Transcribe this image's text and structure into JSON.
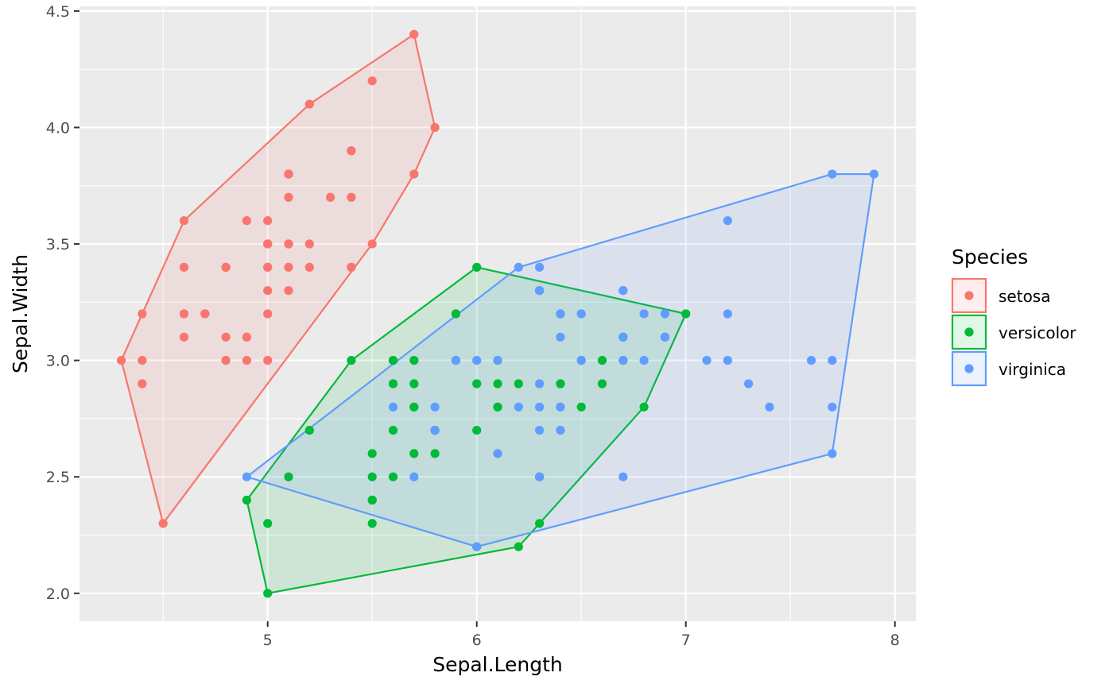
{
  "chart_data": {
    "type": "scatter",
    "title": "",
    "xlabel": "Sepal.Length",
    "ylabel": "Sepal.Width",
    "xlim": [
      4.1,
      8.1
    ],
    "ylim": [
      1.88,
      4.52
    ],
    "x_ticks": [
      5,
      6,
      7,
      8
    ],
    "x_tick_labels": [
      "5",
      "6",
      "7",
      "8"
    ],
    "y_ticks": [
      2.0,
      2.5,
      3.0,
      3.5,
      4.0,
      4.5
    ],
    "y_tick_labels": [
      "2.0",
      "2.5",
      "3.0",
      "3.5",
      "4.0",
      "4.5"
    ],
    "grid": true,
    "panel_background": "#ebebeb",
    "grid_color": "#ffffff",
    "legend": {
      "title": "Species",
      "placement": "right"
    },
    "overlay": "convex-hull",
    "series": [
      {
        "name": "setosa",
        "color": "#f8766d",
        "points": [
          [
            5.1,
            3.5
          ],
          [
            4.9,
            3.0
          ],
          [
            4.7,
            3.2
          ],
          [
            4.6,
            3.1
          ],
          [
            5.0,
            3.6
          ],
          [
            5.4,
            3.9
          ],
          [
            4.6,
            3.4
          ],
          [
            5.0,
            3.4
          ],
          [
            4.4,
            2.9
          ],
          [
            4.9,
            3.1
          ],
          [
            5.4,
            3.7
          ],
          [
            4.8,
            3.4
          ],
          [
            4.8,
            3.0
          ],
          [
            4.3,
            3.0
          ],
          [
            5.8,
            4.0
          ],
          [
            5.7,
            4.4
          ],
          [
            5.4,
            3.9
          ],
          [
            5.1,
            3.5
          ],
          [
            5.7,
            3.8
          ],
          [
            5.1,
            3.8
          ],
          [
            5.4,
            3.4
          ],
          [
            5.1,
            3.7
          ],
          [
            4.6,
            3.6
          ],
          [
            5.1,
            3.3
          ],
          [
            4.8,
            3.4
          ],
          [
            5.0,
            3.0
          ],
          [
            5.0,
            3.4
          ],
          [
            5.2,
            3.5
          ],
          [
            5.2,
            3.4
          ],
          [
            4.7,
            3.2
          ],
          [
            4.8,
            3.1
          ],
          [
            5.4,
            3.4
          ],
          [
            5.2,
            4.1
          ],
          [
            5.5,
            4.2
          ],
          [
            4.9,
            3.1
          ],
          [
            5.0,
            3.2
          ],
          [
            5.5,
            3.5
          ],
          [
            4.9,
            3.6
          ],
          [
            4.4,
            3.0
          ],
          [
            5.1,
            3.4
          ],
          [
            5.0,
            3.5
          ],
          [
            4.5,
            2.3
          ],
          [
            4.4,
            3.2
          ],
          [
            5.0,
            3.5
          ],
          [
            5.1,
            3.8
          ],
          [
            4.8,
            3.0
          ],
          [
            5.1,
            3.8
          ],
          [
            4.6,
            3.2
          ],
          [
            5.3,
            3.7
          ],
          [
            5.0,
            3.3
          ]
        ],
        "hull": [
          [
            4.3,
            3.0
          ],
          [
            4.5,
            2.3
          ],
          [
            5.5,
            3.5
          ],
          [
            5.7,
            3.8
          ],
          [
            5.8,
            4.0
          ],
          [
            5.7,
            4.4
          ],
          [
            5.2,
            4.1
          ],
          [
            4.6,
            3.6
          ],
          [
            4.4,
            3.2
          ]
        ]
      },
      {
        "name": "versicolor",
        "color": "#00ba38",
        "points": [
          [
            7.0,
            3.2
          ],
          [
            6.4,
            3.2
          ],
          [
            6.9,
            3.1
          ],
          [
            5.5,
            2.3
          ],
          [
            6.5,
            2.8
          ],
          [
            5.7,
            2.8
          ],
          [
            6.3,
            3.3
          ],
          [
            4.9,
            2.4
          ],
          [
            6.6,
            2.9
          ],
          [
            5.2,
            2.7
          ],
          [
            5.0,
            2.0
          ],
          [
            5.9,
            3.0
          ],
          [
            6.0,
            2.2
          ],
          [
            6.1,
            2.9
          ],
          [
            5.6,
            2.9
          ],
          [
            6.7,
            3.1
          ],
          [
            5.6,
            3.0
          ],
          [
            5.8,
            2.7
          ],
          [
            6.2,
            2.2
          ],
          [
            5.6,
            2.5
          ],
          [
            5.9,
            3.2
          ],
          [
            6.1,
            2.8
          ],
          [
            6.3,
            2.5
          ],
          [
            6.1,
            2.8
          ],
          [
            6.4,
            2.9
          ],
          [
            6.6,
            3.0
          ],
          [
            6.8,
            2.8
          ],
          [
            6.7,
            3.0
          ],
          [
            6.0,
            2.9
          ],
          [
            5.7,
            2.6
          ],
          [
            5.5,
            2.4
          ],
          [
            5.5,
            2.4
          ],
          [
            5.8,
            2.7
          ],
          [
            6.0,
            2.7
          ],
          [
            5.4,
            3.0
          ],
          [
            6.0,
            3.4
          ],
          [
            6.7,
            3.1
          ],
          [
            6.3,
            2.3
          ],
          [
            5.6,
            3.0
          ],
          [
            5.5,
            2.5
          ],
          [
            5.5,
            2.6
          ],
          [
            6.1,
            3.0
          ],
          [
            5.8,
            2.6
          ],
          [
            5.0,
            2.3
          ],
          [
            5.6,
            2.7
          ],
          [
            5.7,
            3.0
          ],
          [
            5.7,
            2.9
          ],
          [
            6.2,
            2.9
          ],
          [
            5.1,
            2.5
          ],
          [
            5.7,
            2.8
          ]
        ],
        "hull": [
          [
            4.9,
            2.4
          ],
          [
            5.0,
            2.0
          ],
          [
            6.2,
            2.2
          ],
          [
            6.3,
            2.3
          ],
          [
            6.8,
            2.8
          ],
          [
            7.0,
            3.2
          ],
          [
            6.0,
            3.4
          ],
          [
            5.4,
            3.0
          ]
        ]
      },
      {
        "name": "virginica",
        "color": "#619cff",
        "points": [
          [
            6.3,
            3.3
          ],
          [
            5.8,
            2.7
          ],
          [
            7.1,
            3.0
          ],
          [
            6.3,
            2.9
          ],
          [
            6.5,
            3.0
          ],
          [
            7.6,
            3.0
          ],
          [
            4.9,
            2.5
          ],
          [
            7.3,
            2.9
          ],
          [
            6.7,
            2.5
          ],
          [
            7.2,
            3.6
          ],
          [
            6.5,
            3.2
          ],
          [
            6.4,
            2.7
          ],
          [
            6.8,
            3.0
          ],
          [
            5.7,
            2.5
          ],
          [
            5.8,
            2.8
          ],
          [
            6.4,
            3.2
          ],
          [
            6.5,
            3.0
          ],
          [
            7.7,
            3.8
          ],
          [
            7.7,
            2.6
          ],
          [
            6.0,
            2.2
          ],
          [
            6.9,
            3.2
          ],
          [
            5.6,
            2.8
          ],
          [
            7.7,
            2.8
          ],
          [
            6.3,
            2.7
          ],
          [
            6.7,
            3.3
          ],
          [
            7.2,
            3.2
          ],
          [
            6.2,
            2.8
          ],
          [
            6.1,
            3.0
          ],
          [
            6.4,
            2.8
          ],
          [
            7.2,
            3.0
          ],
          [
            7.4,
            2.8
          ],
          [
            7.9,
            3.8
          ],
          [
            6.4,
            2.8
          ],
          [
            6.3,
            2.8
          ],
          [
            6.1,
            2.6
          ],
          [
            7.7,
            3.0
          ],
          [
            6.3,
            3.4
          ],
          [
            6.4,
            3.1
          ],
          [
            6.0,
            3.0
          ],
          [
            6.9,
            3.1
          ],
          [
            6.7,
            3.1
          ],
          [
            6.9,
            3.1
          ],
          [
            5.8,
            2.7
          ],
          [
            6.8,
            3.2
          ],
          [
            6.7,
            3.3
          ],
          [
            6.7,
            3.0
          ],
          [
            6.3,
            2.5
          ],
          [
            6.5,
            3.0
          ],
          [
            6.2,
            3.4
          ],
          [
            5.9,
            3.0
          ]
        ],
        "hull": [
          [
            4.9,
            2.5
          ],
          [
            6.0,
            2.2
          ],
          [
            7.7,
            2.6
          ],
          [
            7.9,
            3.8
          ],
          [
            7.7,
            3.8
          ],
          [
            6.2,
            3.4
          ]
        ]
      }
    ]
  }
}
